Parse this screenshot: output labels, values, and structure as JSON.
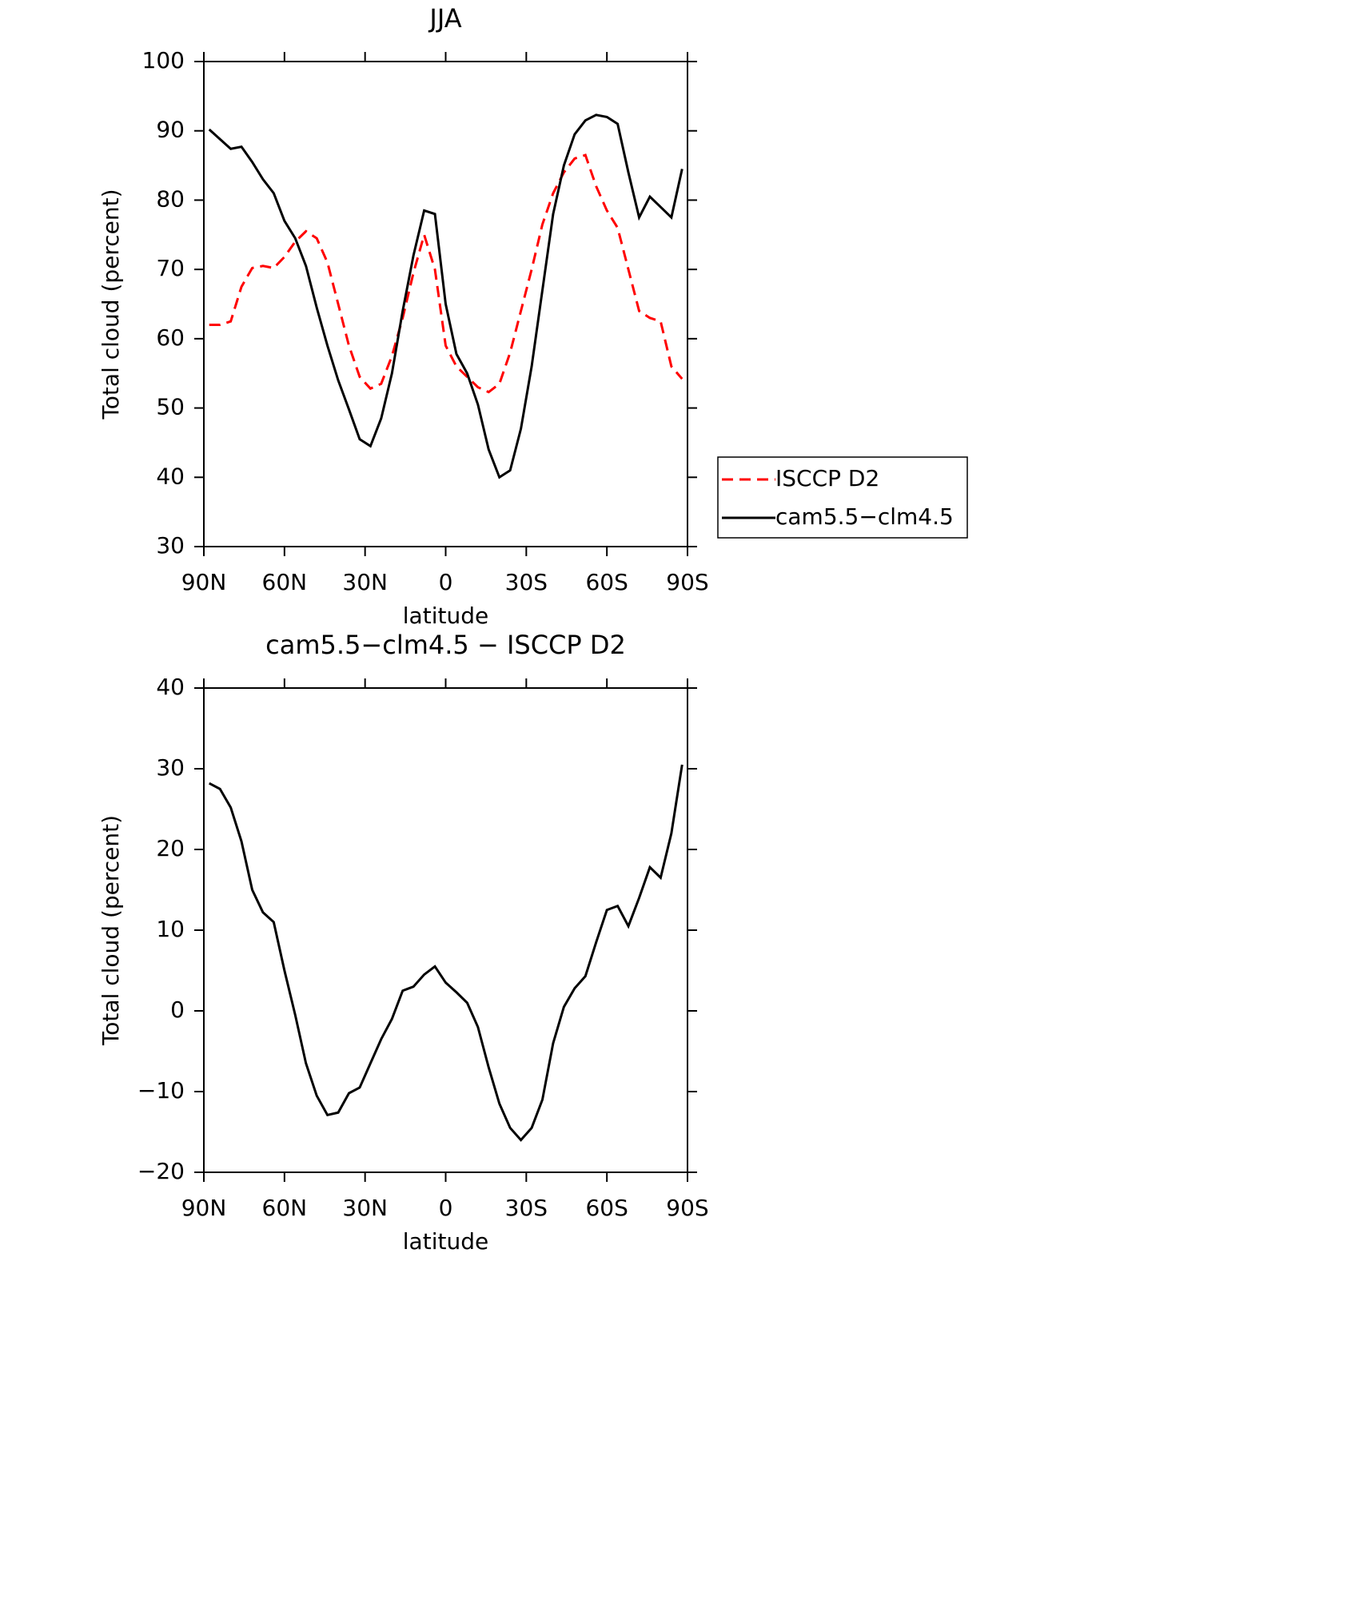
{
  "chart_data": [
    {
      "type": "line",
      "title": "JJA",
      "xlabel": "latitude",
      "ylabel": "Total cloud (percent)",
      "x": [
        88,
        84,
        80,
        76,
        72,
        68,
        64,
        60,
        56,
        52,
        48,
        44,
        40,
        36,
        32,
        28,
        24,
        20,
        16,
        12,
        8,
        4,
        0,
        -4,
        -8,
        -12,
        -16,
        -20,
        -24,
        -28,
        -32,
        -36,
        -40,
        -44,
        -48,
        -52,
        -56,
        -60,
        -64,
        -68,
        -72,
        -76,
        -80,
        -84,
        -88
      ],
      "series": [
        {
          "name": "ISCCP D2",
          "color": "#ff0000",
          "linestyle": "dashed",
          "values": [
            62,
            62,
            62.5,
            67.5,
            70.2,
            70.5,
            70.2,
            71.8,
            74,
            75.5,
            74.5,
            71,
            65,
            59,
            54.5,
            52.8,
            53.5,
            57.5,
            63,
            69.5,
            75,
            70,
            59,
            56,
            54.5,
            53,
            52.3,
            53.5,
            58,
            64,
            70,
            76.5,
            81,
            84,
            86,
            86.5,
            82,
            78.5,
            76,
            70,
            64,
            63,
            62.5,
            56,
            54.2
          ]
        },
        {
          "name": "cam5.5−clm4.5",
          "color": "#000000",
          "linestyle": "solid",
          "values": [
            90.2,
            88.8,
            87.4,
            87.7,
            85.5,
            83,
            81,
            77,
            74.5,
            70.5,
            64.5,
            59,
            54,
            49.8,
            45.5,
            44.5,
            48.5,
            55,
            64,
            72,
            78.5,
            78,
            65,
            57.8,
            55,
            50.5,
            44,
            40,
            41,
            47,
            56,
            67,
            78,
            85,
            89.5,
            91.5,
            92.3,
            92,
            91,
            84,
            77.5,
            80.5,
            79,
            77.5,
            84.5
          ]
        }
      ],
      "xlim": [
        90,
        -90
      ],
      "xticks": [
        {
          "value": 90,
          "label": "90N"
        },
        {
          "value": 60,
          "label": "60N"
        },
        {
          "value": 30,
          "label": "30N"
        },
        0,
        {
          "value": -30,
          "label": "30S"
        },
        {
          "value": -60,
          "label": "60S"
        },
        {
          "value": -90,
          "label": "90S"
        }
      ],
      "ylim": [
        30,
        100
      ],
      "yticks": [
        30,
        40,
        50,
        60,
        70,
        80,
        90,
        100
      ],
      "legend": "right"
    },
    {
      "type": "line",
      "title": "cam5.5−clm4.5 − ISCCP D2",
      "xlabel": "latitude",
      "ylabel": "Total cloud (percent)",
      "x": [
        88,
        84,
        80,
        76,
        72,
        68,
        64,
        60,
        56,
        52,
        48,
        44,
        40,
        36,
        32,
        28,
        24,
        20,
        16,
        12,
        8,
        4,
        0,
        -4,
        -8,
        -12,
        -16,
        -20,
        -24,
        -28,
        -32,
        -36,
        -40,
        -44,
        -48,
        -52,
        -56,
        -60,
        -64,
        -68,
        -72,
        -76,
        -80,
        -84,
        -88
      ],
      "series": [
        {
          "color": "#000000",
          "linestyle": "solid",
          "values": [
            28.2,
            27.5,
            25.2,
            21,
            15,
            12.2,
            11,
            5,
            -0.5,
            -6.5,
            -10.5,
            -12.9,
            -12.6,
            -10.2,
            -9.5,
            -6.5,
            -3.5,
            -1,
            2.5,
            3,
            4.5,
            5.5,
            3.5,
            2.3,
            1,
            -2,
            -7,
            -11.5,
            -14.5,
            -16,
            -14.5,
            -11,
            -4,
            0.5,
            2.8,
            4.3,
            8.5,
            12.5,
            13,
            10.5,
            14,
            17.8,
            16.5,
            22,
            30.5
          ]
        }
      ],
      "xlim": [
        90,
        -90
      ],
      "xticks": [
        {
          "value": 90,
          "label": "90N"
        },
        {
          "value": 60,
          "label": "60N"
        },
        {
          "value": 30,
          "label": "30N"
        },
        0,
        {
          "value": -30,
          "label": "30S"
        },
        {
          "value": -60,
          "label": "60S"
        },
        {
          "value": -90,
          "label": "90S"
        }
      ],
      "ylim": [
        -20,
        40
      ],
      "yticks": [
        {
          "value": -20,
          "label": "−20"
        },
        {
          "value": -10,
          "label": "−10"
        },
        0,
        10,
        20,
        30,
        40
      ]
    }
  ]
}
